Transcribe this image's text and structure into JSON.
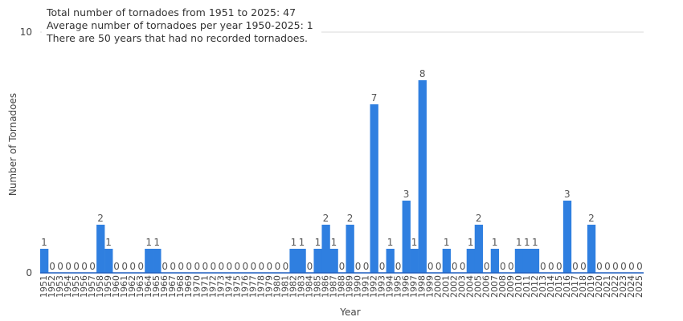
{
  "chart_data": {
    "type": "bar",
    "xlabel": "Year",
    "ylabel": "Number of Tornadoes",
    "ylim": [
      0,
      10
    ],
    "yticks": [
      0,
      10
    ],
    "grid": true,
    "legend": "none",
    "bar_color": "#2f7fe0",
    "annotations": [
      "Total number of tornadoes from 1951 to 2025: 47",
      "Average number of tornadoes per year 1950-2025: 1",
      "There are 50 years that had no recorded tornadoes."
    ],
    "categories": [
      "1951",
      "1952",
      "1953",
      "1954",
      "1955",
      "1956",
      "1957",
      "1958",
      "1959",
      "1960",
      "1961",
      "1962",
      "1963",
      "1964",
      "1965",
      "1966",
      "1967",
      "1968",
      "1969",
      "1970",
      "1971",
      "1972",
      "1973",
      "1974",
      "1975",
      "1976",
      "1977",
      "1978",
      "1979",
      "1980",
      "1981",
      "1982",
      "1983",
      "1984",
      "1985",
      "1986",
      "1987",
      "1988",
      "1989",
      "1990",
      "1991",
      "1992",
      "1993",
      "1994",
      "1995",
      "1996",
      "1997",
      "1998",
      "1999",
      "2000",
      "2001",
      "2002",
      "2003",
      "2004",
      "2005",
      "2006",
      "2007",
      "2008",
      "2009",
      "2010",
      "2011",
      "2012",
      "2013",
      "2014",
      "2015",
      "2016",
      "2017",
      "2018",
      "2019",
      "2020",
      "2021",
      "2022",
      "2023",
      "2024",
      "2025"
    ],
    "values": [
      1,
      0,
      0,
      0,
      0,
      0,
      0,
      2,
      1,
      0,
      0,
      0,
      0,
      1,
      1,
      0,
      0,
      0,
      0,
      0,
      0,
      0,
      0,
      0,
      0,
      0,
      0,
      0,
      0,
      0,
      0,
      1,
      1,
      0,
      1,
      2,
      1,
      0,
      2,
      0,
      0,
      7,
      0,
      1,
      0,
      3,
      1,
      8,
      0,
      0,
      1,
      0,
      0,
      1,
      2,
      0,
      1,
      0,
      0,
      1,
      1,
      1,
      0,
      0,
      0,
      3,
      0,
      0,
      2,
      0,
      0,
      0,
      0,
      0,
      0
    ]
  }
}
